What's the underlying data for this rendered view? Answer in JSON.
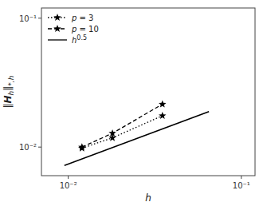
{
  "chart_data": {
    "type": "line",
    "xlabel": "h",
    "ylabel": "‖Hh‖*,h",
    "log": true,
    "grid": false,
    "legend": "upper left",
    "xlim": [
      0.007,
      0.12
    ],
    "ylim": [
      0.006,
      0.12
    ],
    "xticks": [
      {
        "value": 0.01,
        "label": "10⁻²"
      },
      {
        "value": 0.1,
        "label": "10⁻¹"
      }
    ],
    "yticks": [
      {
        "value": 0.01,
        "label": "10⁻²"
      },
      {
        "value": 0.1,
        "label": "10⁻¹"
      }
    ],
    "series": [
      {
        "name": "p = 3",
        "color": "black",
        "marker": "star",
        "line_style": "dotted",
        "x": [
          0.012,
          0.018,
          0.035
        ],
        "values": [
          0.0098,
          0.0118,
          0.0175
        ]
      },
      {
        "name": "p = 10",
        "color": "black",
        "marker": "star",
        "line_style": "dashed",
        "x": [
          0.012,
          0.018,
          0.035
        ],
        "values": [
          0.01,
          0.0128,
          0.0215
        ]
      },
      {
        "name": "h0.5",
        "color": "black",
        "line_style": "solid",
        "x": [
          0.0095,
          0.065
        ],
        "values": [
          0.0072,
          0.01883334
        ]
      }
    ]
  }
}
